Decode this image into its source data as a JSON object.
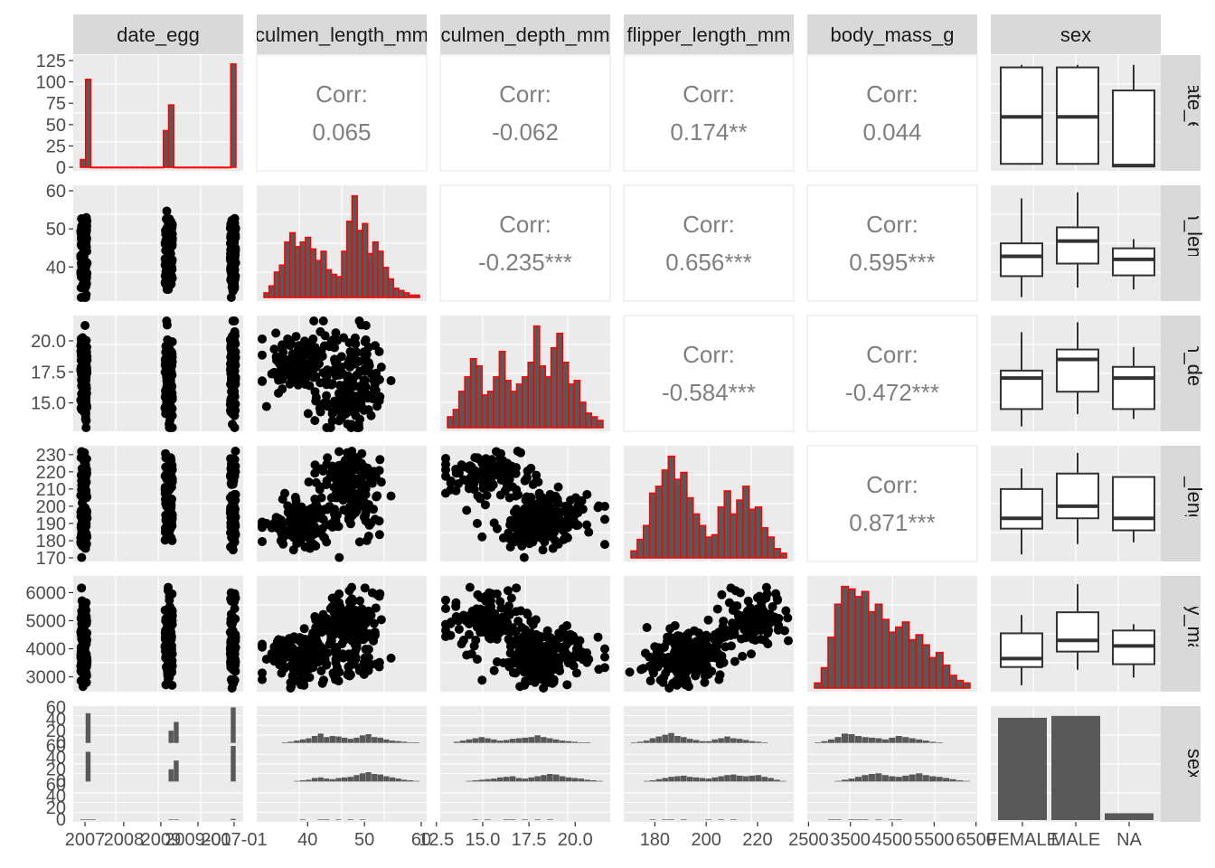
{
  "chart_data": {
    "type": "scatter",
    "variables": [
      "date_egg",
      "culmen_length_mm",
      "culmen_depth_mm",
      "flipper_length_mm",
      "body_mass_g",
      "sex"
    ],
    "row_strip_labels": [
      "date_egg",
      "culmen_length_mm",
      "culmen_depth_mm",
      "flipper_length_mm",
      "body_mass_g",
      "sex"
    ],
    "corr_label": "Corr:",
    "correlations": [
      {
        "row": 0,
        "col": 1,
        "value": "0.065"
      },
      {
        "row": 0,
        "col": 2,
        "value": "-0.062"
      },
      {
        "row": 0,
        "col": 3,
        "value": "0.174**"
      },
      {
        "row": 0,
        "col": 4,
        "value": "0.044"
      },
      {
        "row": 1,
        "col": 2,
        "value": "-0.235***"
      },
      {
        "row": 1,
        "col": 3,
        "value": "0.656***"
      },
      {
        "row": 1,
        "col": 4,
        "value": "0.595***"
      },
      {
        "row": 2,
        "col": 3,
        "value": "-0.584***"
      },
      {
        "row": 2,
        "col": 4,
        "value": "-0.472***"
      },
      {
        "row": 3,
        "col": 4,
        "value": "0.871***"
      }
    ],
    "x_ticks": [
      [
        "2007",
        "2008",
        "2009",
        "2009-01",
        "2007-01"
      ],
      [
        "40",
        "50",
        "60"
      ],
      [
        "12.5",
        "15.0",
        "17.5",
        "20.0"
      ],
      [
        "180",
        "200",
        "220"
      ],
      [
        "2500",
        "3500",
        "4500",
        "5500",
        "6500"
      ],
      [
        "FEMALE",
        "MALE",
        "NA"
      ]
    ],
    "y_ticks": [
      [
        "125",
        "100",
        "75",
        "50",
        "25",
        "0"
      ],
      [
        "60",
        "50",
        "40"
      ],
      [
        "20.0",
        "17.5",
        "15.0"
      ],
      [
        "230",
        "220",
        "210",
        "200",
        "190",
        "180",
        "170"
      ],
      [
        "6000",
        "5000",
        "4000",
        "3000"
      ],
      [
        "60",
        "40",
        "20",
        "0",
        "60",
        "40",
        "20",
        "0",
        "60",
        "40",
        "20",
        "0"
      ]
    ],
    "sex_categories": [
      "FEMALE",
      "MALE",
      "NA"
    ],
    "sex_counts": [
      165,
      168,
      11
    ],
    "date_egg_histogram": {
      "values": [
        9,
        103,
        0,
        0,
        0,
        0,
        0,
        0,
        0,
        0,
        0,
        0,
        0,
        0,
        0,
        0,
        43,
        73,
        0,
        0,
        0,
        0,
        0,
        0,
        0,
        0,
        0,
        0,
        0,
        121
      ]
    },
    "date_egg_boxplot_by_sex": [
      {
        "sex": "FEMALE",
        "min": 3,
        "q1": 4,
        "median": 59,
        "q3": 117,
        "max": 120
      },
      {
        "sex": "MALE",
        "min": 3,
        "q1": 4,
        "median": 59,
        "q3": 117,
        "max": 120
      },
      {
        "sex": "NA",
        "min": 1,
        "q1": 1,
        "median": 2,
        "q3": 90,
        "max": 120
      }
    ],
    "culmen_length_boxplot_by_sex": [
      {
        "sex": "FEMALE",
        "min": 32.1,
        "q1": 37.6,
        "median": 42.8,
        "q3": 46.2,
        "max": 58
      },
      {
        "sex": "MALE",
        "min": 34.6,
        "q1": 40.9,
        "median": 46.8,
        "q3": 50.4,
        "max": 59.6
      },
      {
        "sex": "NA",
        "min": 34.1,
        "q1": 37.8,
        "median": 42,
        "q3": 44.9,
        "max": 47.3
      }
    ],
    "culmen_depth_boxplot_by_sex": [
      {
        "sex": "FEMALE",
        "min": 13.1,
        "q1": 14.5,
        "median": 17,
        "q3": 17.6,
        "max": 20.7
      },
      {
        "sex": "MALE",
        "min": 14.1,
        "q1": 15.9,
        "median": 18.5,
        "q3": 19.3,
        "max": 21.5
      },
      {
        "sex": "NA",
        "min": 13.7,
        "q1": 14.5,
        "median": 17,
        "q3": 17.9,
        "max": 19.5
      }
    ],
    "flipper_length_boxplot_by_sex": [
      {
        "sex": "FEMALE",
        "min": 172,
        "q1": 187,
        "median": 193,
        "q3": 210,
        "max": 222
      },
      {
        "sex": "MALE",
        "min": 178,
        "q1": 193,
        "median": 200,
        "q3": 219,
        "max": 231
      },
      {
        "sex": "NA",
        "min": 179,
        "q1": 186,
        "median": 193,
        "q3": 217,
        "max": 217
      }
    ],
    "body_mass_boxplot_by_sex": [
      {
        "sex": "FEMALE",
        "min": 2700,
        "q1": 3350,
        "median": 3650,
        "q3": 4550,
        "max": 5200
      },
      {
        "sex": "MALE",
        "min": 3250,
        "q1": 3900,
        "median": 4300,
        "q3": 5300,
        "max": 6300
      },
      {
        "sex": "NA",
        "min": 2975,
        "q1": 3450,
        "median": 4100,
        "q3": 4650,
        "max": 4875
      }
    ],
    "culmen_length_histogram": {
      "range": [
        32,
        60
      ],
      "values": [
        2,
        5,
        11,
        14,
        24,
        28,
        22,
        24,
        26,
        21,
        16,
        20,
        12,
        10,
        9,
        20,
        33,
        44,
        29,
        32,
        19,
        24,
        20,
        13,
        8,
        4,
        3,
        2,
        1,
        1
      ]
    },
    "culmen_depth_histogram": {
      "range": [
        13,
        21.6
      ],
      "values": [
        3,
        5,
        10,
        14,
        19,
        17,
        9,
        10,
        14,
        21,
        13,
        10,
        12,
        14,
        18,
        28,
        17,
        14,
        22,
        26,
        18,
        12,
        13,
        7,
        4,
        3,
        2
      ]
    },
    "flipper_length_histogram": {
      "range": [
        172,
        231
      ],
      "values": [
        3,
        8,
        14,
        28,
        31,
        38,
        44,
        34,
        37,
        26,
        19,
        14,
        9,
        10,
        22,
        29,
        19,
        25,
        31,
        21,
        22,
        13,
        9,
        4,
        2
      ]
    },
    "body_mass_histogram": {
      "range": [
        2700,
        6300
      ],
      "values": [
        2,
        8,
        20,
        33,
        40,
        39,
        36,
        38,
        30,
        33,
        27,
        22,
        24,
        26,
        19,
        21,
        17,
        12,
        14,
        9,
        5,
        3,
        2
      ]
    },
    "sex_bars_by_variable": {
      "culmen_length": [
        [
          0,
          0,
          0,
          1,
          2,
          4,
          6,
          8,
          12,
          16,
          10,
          12,
          11,
          9,
          7,
          9,
          13,
          15,
          10,
          9,
          6,
          4,
          3,
          2,
          1,
          1
        ],
        [
          0,
          0,
          0,
          0,
          0,
          1,
          2,
          3,
          6,
          7,
          5,
          4,
          6,
          7,
          8,
          11,
          14,
          16,
          13,
          12,
          9,
          7,
          5,
          3,
          2,
          1
        ],
        [
          0,
          0,
          0,
          0,
          0,
          0,
          1,
          0,
          0,
          1,
          1,
          0,
          1,
          0,
          1,
          0,
          1,
          0,
          0,
          0,
          0,
          0,
          0,
          0,
          0,
          0
        ]
      ],
      "culmen_depth": [
        [
          0,
          2,
          4,
          6,
          8,
          10,
          8,
          6,
          4,
          5,
          7,
          8,
          9,
          10,
          13,
          10,
          8,
          6,
          4,
          3,
          2,
          1,
          1,
          0,
          0
        ],
        [
          0,
          0,
          0,
          1,
          2,
          3,
          4,
          5,
          7,
          8,
          9,
          6,
          5,
          7,
          9,
          11,
          13,
          12,
          9,
          7,
          6,
          5,
          3,
          2,
          1
        ],
        [
          0,
          0,
          0,
          0,
          1,
          0,
          1,
          0,
          0,
          1,
          1,
          0,
          1,
          0,
          1,
          0,
          1,
          0,
          0,
          0,
          0,
          0,
          0,
          0,
          0
        ]
      ],
      "flipper_length": [
        [
          1,
          2,
          4,
          8,
          11,
          14,
          17,
          12,
          10,
          7,
          5,
          3,
          3,
          6,
          8,
          11,
          8,
          7,
          5,
          3,
          2,
          1,
          0,
          0,
          0
        ],
        [
          0,
          0,
          1,
          2,
          4,
          6,
          8,
          9,
          10,
          8,
          7,
          6,
          5,
          7,
          9,
          11,
          12,
          10,
          9,
          10,
          11,
          8,
          6,
          3,
          1
        ],
        [
          0,
          0,
          0,
          1,
          0,
          1,
          1,
          0,
          1,
          0,
          0,
          0,
          1,
          0,
          1,
          0,
          1,
          0,
          0,
          0,
          0,
          0,
          0,
          0,
          0
        ]
      ],
      "body_mass": [
        [
          1,
          3,
          6,
          10,
          16,
          15,
          12,
          10,
          9,
          8,
          6,
          9,
          12,
          10,
          8,
          6,
          4,
          2,
          1,
          0,
          0,
          0,
          0
        ],
        [
          0,
          0,
          0,
          1,
          3,
          5,
          8,
          11,
          13,
          14,
          11,
          9,
          8,
          10,
          12,
          14,
          11,
          9,
          8,
          6,
          4,
          2,
          1
        ],
        [
          0,
          0,
          1,
          1,
          0,
          1,
          1,
          1,
          0,
          1,
          0,
          1,
          1,
          0,
          0,
          0,
          0,
          0,
          0,
          0,
          0,
          0,
          0
        ]
      ]
    },
    "sex_by_date_egg_counts": [
      [
        0,
        51,
        0,
        0,
        0,
        0,
        0,
        0,
        0,
        0,
        0,
        0,
        0,
        0,
        0,
        0,
        0,
        21,
        36,
        0,
        0,
        0,
        0,
        0,
        0,
        0,
        0,
        0,
        0,
        61
      ],
      [
        0,
        51,
        0,
        0,
        0,
        0,
        0,
        0,
        0,
        0,
        0,
        0,
        0,
        0,
        0,
        0,
        0,
        21,
        36,
        0,
        0,
        0,
        0,
        0,
        0,
        0,
        0,
        0,
        0,
        61
      ],
      [
        1,
        1,
        1,
        0,
        0,
        0,
        0,
        0,
        0,
        0,
        0,
        0,
        0,
        0,
        0,
        0,
        0,
        1,
        1,
        0,
        0,
        0,
        0,
        0,
        0,
        0,
        0,
        0,
        0,
        2
      ]
    ]
  }
}
